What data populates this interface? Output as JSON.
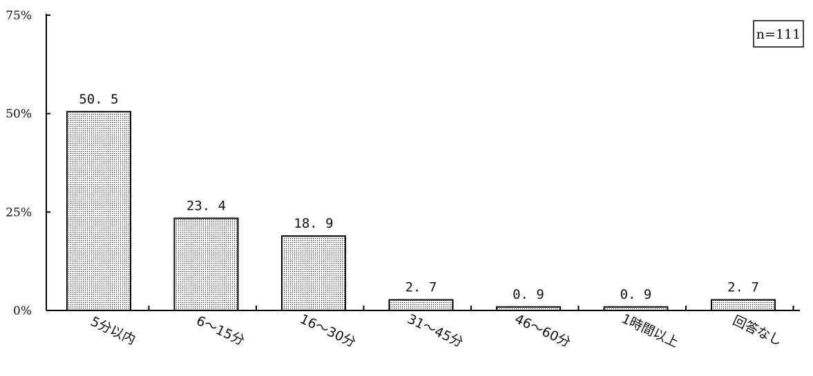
{
  "chart_data": {
    "type": "bar",
    "categories": [
      "5分以内",
      "6～15分",
      "16～30分",
      "31～45分",
      "46～60分",
      "1時間以上",
      "回答なし"
    ],
    "values": [
      50.5,
      23.4,
      18.9,
      2.7,
      0.9,
      0.9,
      2.7
    ],
    "value_labels": [
      "50. 5",
      "23. 4",
      "18. 9",
      "2. 7",
      "0. 9",
      "0. 9",
      "2. 7"
    ],
    "yticks": [
      0,
      25,
      50,
      75
    ],
    "ytick_labels": [
      "0%",
      "25%",
      "50%",
      "75%"
    ],
    "ylim": [
      0,
      75
    ],
    "annotation": "n=111",
    "grid": false,
    "bar_fill": "dotted",
    "color": "#000000"
  }
}
